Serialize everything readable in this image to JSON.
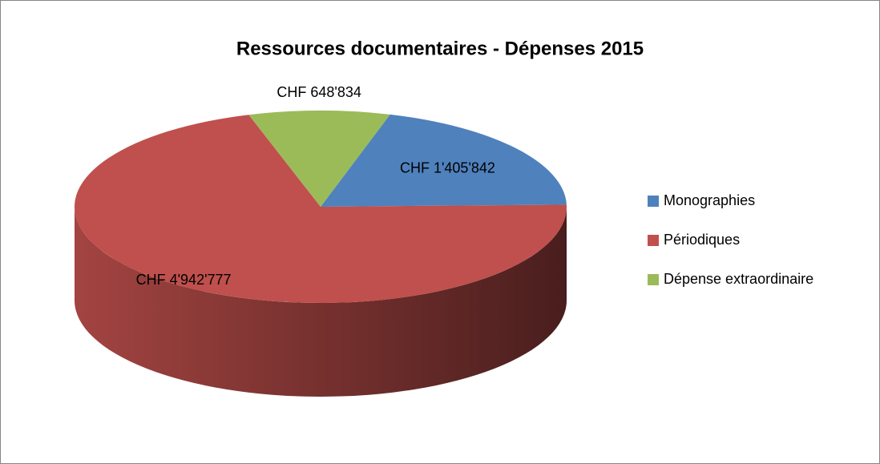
{
  "chart_data": {
    "type": "pie",
    "title": "Ressources documentaires - Dépenses 2015",
    "categories": [
      "Monographies",
      "Périodiques",
      "Dépense extraordinaire"
    ],
    "values": [
      1405842,
      4942777,
      648834
    ],
    "value_labels": [
      "CHF 1'405'842",
      "CHF 4'942'777",
      "CHF 648'834"
    ],
    "colors": [
      "#4f81bd",
      "#c0504d",
      "#9bbb59"
    ],
    "legend": "right"
  }
}
